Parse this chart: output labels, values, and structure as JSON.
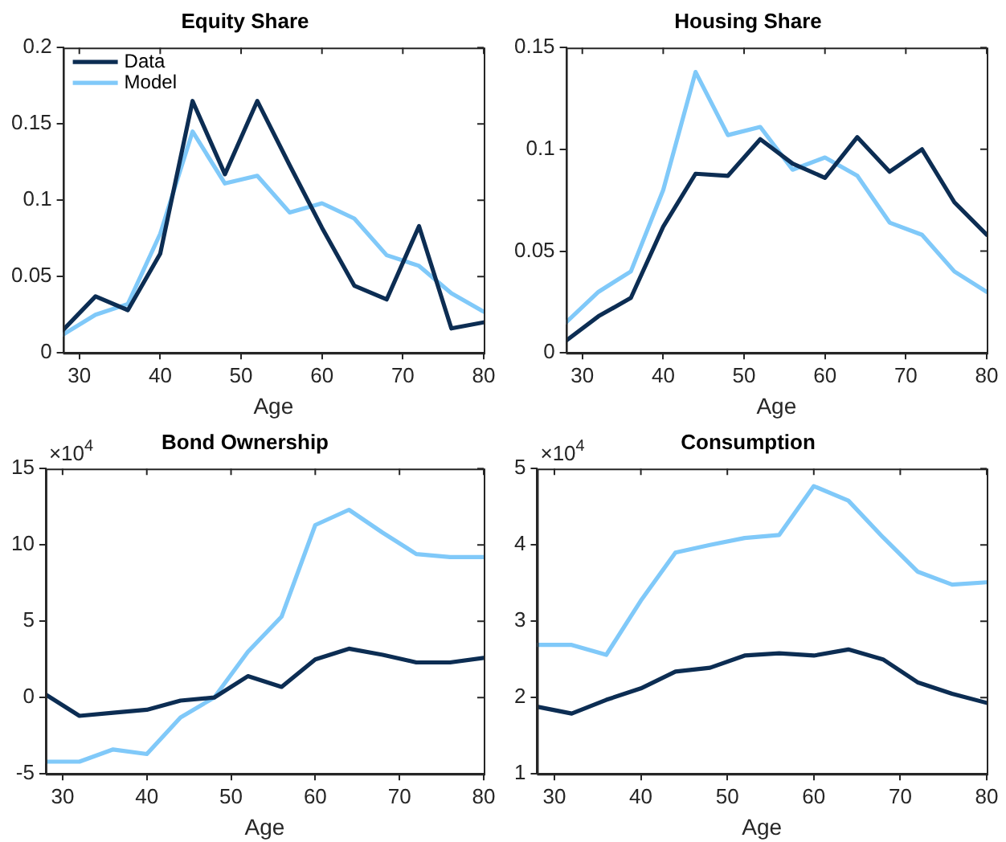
{
  "chart_data": [
    {
      "type": "line",
      "title": "Equity Share",
      "xlabel": "Age",
      "x": [
        28,
        32,
        36,
        40,
        44,
        48,
        52,
        56,
        60,
        64,
        68,
        72,
        76,
        80
      ],
      "xlim": [
        28,
        80
      ],
      "xticks": [
        30,
        40,
        50,
        60,
        70,
        80
      ],
      "ylim": [
        0,
        0.2
      ],
      "yticks": [
        0,
        0.05,
        0.1,
        0.15,
        0.2
      ],
      "legend": "top left",
      "marker": "none",
      "grid": false,
      "series": [
        {
          "name": "Data",
          "color": "#0c2d53",
          "values": [
            0.015,
            0.037,
            0.028,
            0.065,
            0.165,
            0.117,
            0.165,
            0.123,
            0.082,
            0.044,
            0.035,
            0.083,
            0.016,
            0.02
          ]
        },
        {
          "name": "Model",
          "color": "#80c9f9",
          "values": [
            0.012,
            0.025,
            0.032,
            0.078,
            0.145,
            0.111,
            0.116,
            0.092,
            0.098,
            0.088,
            0.064,
            0.057,
            0.039,
            0.027
          ]
        }
      ]
    },
    {
      "type": "line",
      "title": "Housing Share",
      "xlabel": "Age",
      "x": [
        28,
        32,
        36,
        40,
        44,
        48,
        52,
        56,
        60,
        64,
        68,
        72,
        76,
        80
      ],
      "xlim": [
        28,
        80
      ],
      "xticks": [
        30,
        40,
        50,
        60,
        70,
        80
      ],
      "ylim": [
        0,
        0.15
      ],
      "yticks": [
        0,
        0.05,
        0.1,
        0.15
      ],
      "marker": "none",
      "grid": false,
      "series": [
        {
          "color": "#0c2d53",
          "values": [
            0.006,
            0.018,
            0.027,
            0.062,
            0.088,
            0.087,
            0.105,
            0.093,
            0.086,
            0.106,
            0.089,
            0.1,
            0.074,
            0.058
          ]
        },
        {
          "color": "#80c9f9",
          "values": [
            0.015,
            0.03,
            0.04,
            0.08,
            0.138,
            0.107,
            0.111,
            0.09,
            0.096,
            0.087,
            0.064,
            0.058,
            0.04,
            0.03
          ]
        }
      ]
    },
    {
      "type": "line",
      "title": "Bond Ownership",
      "xlabel": "Age",
      "annotations": [
        "×10$^{4}$"
      ],
      "x": [
        28,
        32,
        36,
        40,
        44,
        48,
        52,
        56,
        60,
        64,
        68,
        72,
        76,
        80
      ],
      "xlim": [
        28,
        80
      ],
      "xticks": [
        30,
        40,
        50,
        60,
        70,
        80
      ],
      "ylim": [
        -5,
        15
      ],
      "yticks": [
        -5,
        0,
        5,
        10,
        15
      ],
      "marker": "none",
      "grid": false,
      "series": [
        {
          "color": "#0c2d53",
          "values": [
            0.2,
            -1.2,
            -1,
            -0.8,
            -0.2,
            0,
            1.4,
            0.7,
            2.5,
            3.2,
            2.8,
            2.3,
            2.3,
            2.6
          ]
        },
        {
          "color": "#80c9f9",
          "values": [
            -4.2,
            -4.2,
            -3.4,
            -3.7,
            -1.3,
            0,
            3,
            5.3,
            11.3,
            12.3,
            10.8,
            9.4,
            9.2,
            9.2
          ]
        }
      ]
    },
    {
      "type": "line",
      "title": "Consumption",
      "xlabel": "Age",
      "annotations": [
        "×10$^{4}$"
      ],
      "x": [
        28,
        32,
        36,
        40,
        44,
        48,
        52,
        56,
        60,
        64,
        68,
        72,
        76,
        80
      ],
      "xlim": [
        28,
        80
      ],
      "xticks": [
        30,
        40,
        50,
        60,
        70,
        80
      ],
      "ylim": [
        1,
        5
      ],
      "yticks": [
        1,
        2,
        3,
        4,
        5
      ],
      "marker": "none",
      "grid": false,
      "series": [
        {
          "color": "#0c2d53",
          "values": [
            1.88,
            1.79,
            1.97,
            2.12,
            2.34,
            2.39,
            2.55,
            2.58,
            2.55,
            2.63,
            2.5,
            2.2,
            2.05,
            1.93
          ]
        },
        {
          "color": "#80c9f9",
          "values": [
            2.69,
            2.69,
            2.56,
            3.27,
            3.9,
            4,
            4.09,
            4.13,
            4.77,
            4.58,
            4.1,
            3.65,
            3.48,
            3.51
          ]
        }
      ]
    }
  ]
}
